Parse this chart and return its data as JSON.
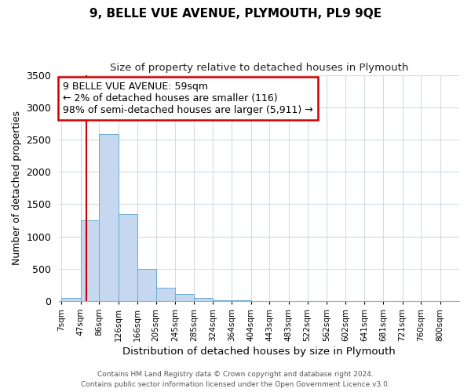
{
  "title": "9, BELLE VUE AVENUE, PLYMOUTH, PL9 9QE",
  "subtitle": "Size of property relative to detached houses in Plymouth",
  "xlabel": "Distribution of detached houses by size in Plymouth",
  "ylabel": "Number of detached properties",
  "bar_labels": [
    "7sqm",
    "47sqm",
    "86sqm",
    "126sqm",
    "166sqm",
    "205sqm",
    "245sqm",
    "285sqm",
    "324sqm",
    "364sqm",
    "404sqm",
    "443sqm",
    "483sqm",
    "522sqm",
    "562sqm",
    "602sqm",
    "641sqm",
    "681sqm",
    "721sqm",
    "760sqm",
    "800sqm"
  ],
  "bar_heights": [
    50,
    1250,
    2580,
    1350,
    500,
    200,
    110,
    50,
    15,
    5,
    2,
    0,
    0,
    0,
    0,
    0,
    0,
    0,
    0,
    0,
    0
  ],
  "bar_color": "#c5d8ef",
  "bar_edge_color": "#6aaad4",
  "property_sqm": 59,
  "annotation_title": "9 BELLE VUE AVENUE: 59sqm",
  "annotation_line1": "← 2% of detached houses are smaller (116)",
  "annotation_line2": "98% of semi-detached houses are larger (5,911) →",
  "annotation_box_color": "#ffffff",
  "annotation_box_edge": "#cc0000",
  "vline_color": "#cc0000",
  "ylim": [
    0,
    3500
  ],
  "yticks": [
    0,
    500,
    1000,
    1500,
    2000,
    2500,
    3000,
    3500
  ],
  "grid_color": "#d0dde8",
  "footer1": "Contains HM Land Registry data © Crown copyright and database right 2024.",
  "footer2": "Contains public sector information licensed under the Open Government Licence v3.0."
}
